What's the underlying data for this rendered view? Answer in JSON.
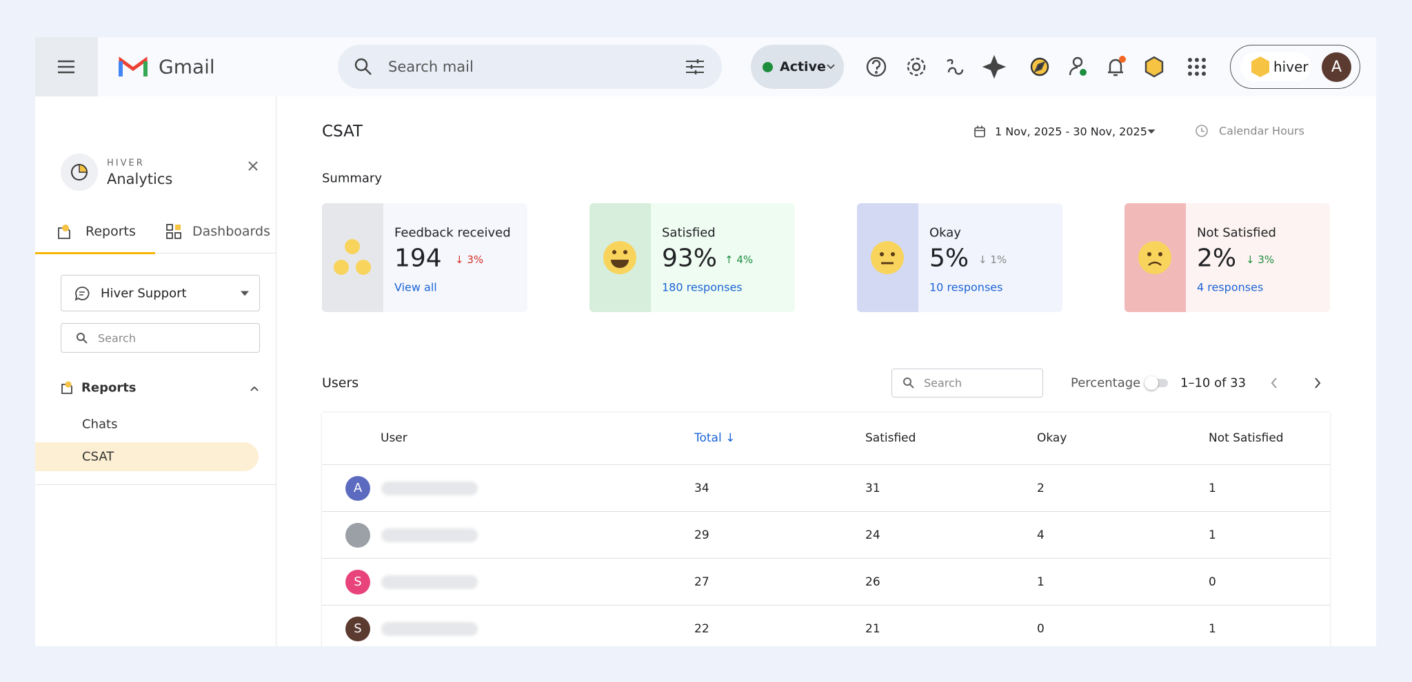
{
  "header": {
    "app": "Gmail",
    "search_placeholder": "Search mail",
    "status": "Active",
    "account_brand": "hiver",
    "avatar": "A"
  },
  "sidebar": {
    "brand": "HIVER",
    "title": "Analytics",
    "tabs": [
      "Reports",
      "Dashboards"
    ],
    "inbox": "Hiver Support",
    "search_placeholder": "Search",
    "section": "Reports",
    "items": [
      "Chats",
      "CSAT"
    ]
  },
  "main": {
    "title": "CSAT",
    "date_range": "1 Nov, 2025 - 30 Nov, 2025",
    "hours": "Calendar Hours",
    "summary_title": "Summary",
    "cards": [
      {
        "label": "Feedback received",
        "value": "194",
        "change": "3%",
        "link": "View all"
      },
      {
        "label": "Satisfied",
        "value": "93%",
        "change": "4%",
        "link": "180 responses"
      },
      {
        "label": "Okay",
        "value": "5%",
        "change": "1%",
        "link": "10 responses"
      },
      {
        "label": "Not Satisfied",
        "value": "2%",
        "change": "3%",
        "link": "4 responses"
      }
    ],
    "users": {
      "title": "Users",
      "search_placeholder": "Search",
      "toggle_label": "Percentage",
      "pagination": "1–10 of 33",
      "columns": [
        "User",
        "Total",
        "Satisfied",
        "Okay",
        "Not Satisfied"
      ],
      "rows": [
        {
          "initial": "A",
          "cells": [
            34,
            31,
            2,
            1
          ]
        },
        {
          "cells": [
            29,
            24,
            4,
            1
          ]
        },
        {
          "initial": "S",
          "cells": [
            27,
            26,
            1,
            0
          ]
        },
        {
          "initial": "S",
          "cells": [
            22,
            21,
            0,
            1
          ]
        }
      ]
    }
  }
}
